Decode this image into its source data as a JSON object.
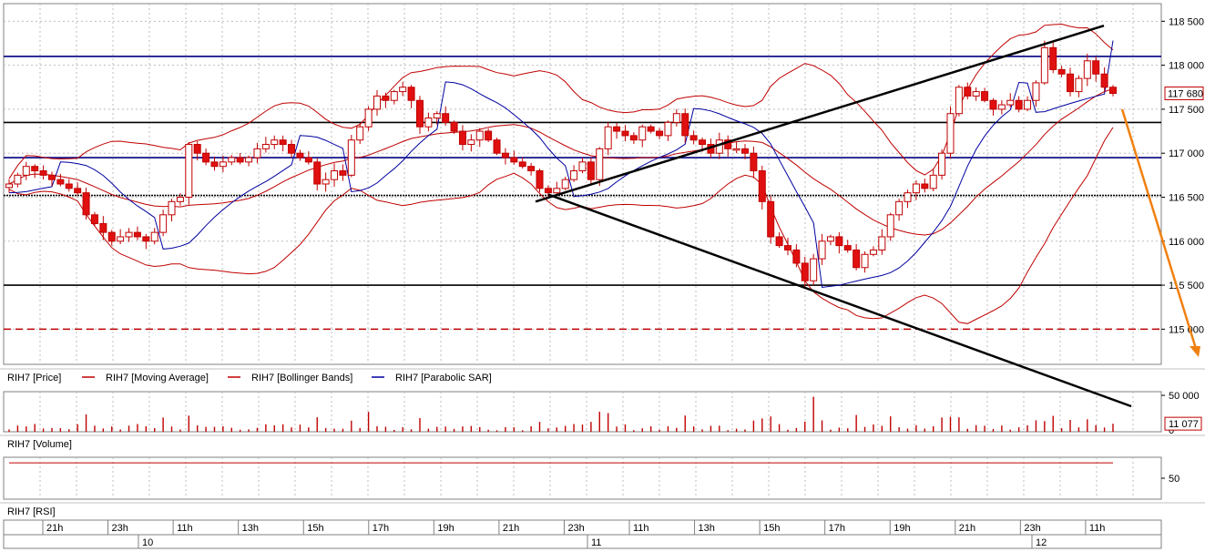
{
  "chart_data": [
    {
      "type": "candlestick",
      "panel": "price",
      "instrument": "RIH7",
      "y_ticks": [
        115000,
        115500,
        116000,
        116500,
        117000,
        117500,
        118000,
        118500
      ],
      "y_tick_labels": [
        "115 000",
        "115 500",
        "116 000",
        "116 500",
        "117 000",
        "117 500",
        "118 000",
        "118 500"
      ],
      "ylim": [
        114600,
        118700
      ],
      "last_price_label": "117 680",
      "last_price": 117680,
      "legend": [
        {
          "name": "RIH7 [Price]",
          "color": "#000000"
        },
        {
          "name": "RIH7 [Moving Average]",
          "color": "#c00000"
        },
        {
          "name": "RIH7 [Bollinger Bands]",
          "color": "#c00000"
        },
        {
          "name": "RIH7 [Parabolic SAR]",
          "color": "#0000a0"
        }
      ],
      "horizontal_levels": [
        {
          "value": 118100,
          "color": "#000080"
        },
        {
          "value": 117350,
          "color": "#000000"
        },
        {
          "value": 116950,
          "color": "#000080"
        },
        {
          "value": 116520,
          "color": "#000000",
          "dotted": true
        },
        {
          "value": 115500,
          "color": "#000000"
        },
        {
          "value": 115000,
          "color": "#c00000",
          "dashed": true
        }
      ],
      "candles": [
        116650,
        116750,
        116850,
        116800,
        116750,
        116700,
        116650,
        116600,
        116550,
        116300,
        116200,
        116100,
        116000,
        116050,
        116100,
        116050,
        116000,
        116100,
        116300,
        116450,
        116500,
        117100,
        117000,
        116900,
        116850,
        116900,
        116950,
        116900,
        116950,
        117050,
        117100,
        117150,
        117100,
        117000,
        116950,
        116900,
        116650,
        116700,
        116800,
        116750,
        117150,
        117300,
        117500,
        117650,
        117600,
        117700,
        117750,
        117600,
        117300,
        117400,
        117450,
        117350,
        117250,
        117100,
        117150,
        117250,
        117150,
        117000,
        116950,
        116900,
        116850,
        116800,
        116600,
        116550,
        116600,
        116700,
        116800,
        116900,
        116700,
        117050,
        117300,
        117250,
        117200,
        117150,
        117300,
        117250,
        117200,
        117350,
        117450,
        117200,
        117150,
        117100,
        117000,
        117150,
        117050,
        117050,
        117000,
        116800,
        116450,
        116050,
        115950,
        115900,
        115750,
        115550,
        115800,
        116000,
        116050,
        115950,
        115900,
        115700,
        115850,
        115900,
        116050,
        116300,
        116450,
        116550,
        116650,
        116600,
        116750,
        117000,
        117450,
        117750,
        117650,
        117700,
        117600,
        117500,
        117550,
        117600,
        117500,
        117600,
        117800,
        118200,
        117950,
        117900,
        117700,
        117850,
        118050,
        117900,
        117750,
        117680
      ],
      "x_ticks": [
        "21h",
        "23h",
        "11h",
        "13h",
        "15h",
        "17h",
        "19h",
        "21h",
        "23h",
        "11h",
        "13h",
        "15h",
        "17h",
        "19h",
        "21h",
        "23h",
        "11h"
      ],
      "day_labels": [
        "10",
        "11",
        "12"
      ]
    },
    {
      "type": "bar",
      "panel": "volume",
      "title": "RIH7 [Volume]",
      "y_tick_label": "50 000",
      "y_tick_value": 50000,
      "last_value_label": "11 077",
      "last_value": 11077,
      "zero_label": "0",
      "ylim": [
        0,
        55000
      ]
    },
    {
      "type": "line",
      "panel": "rsi",
      "title": "RIH7 [RSI]",
      "y_tick_label": "50",
      "y_tick_value": 50,
      "ylim": [
        20,
        80
      ]
    }
  ]
}
